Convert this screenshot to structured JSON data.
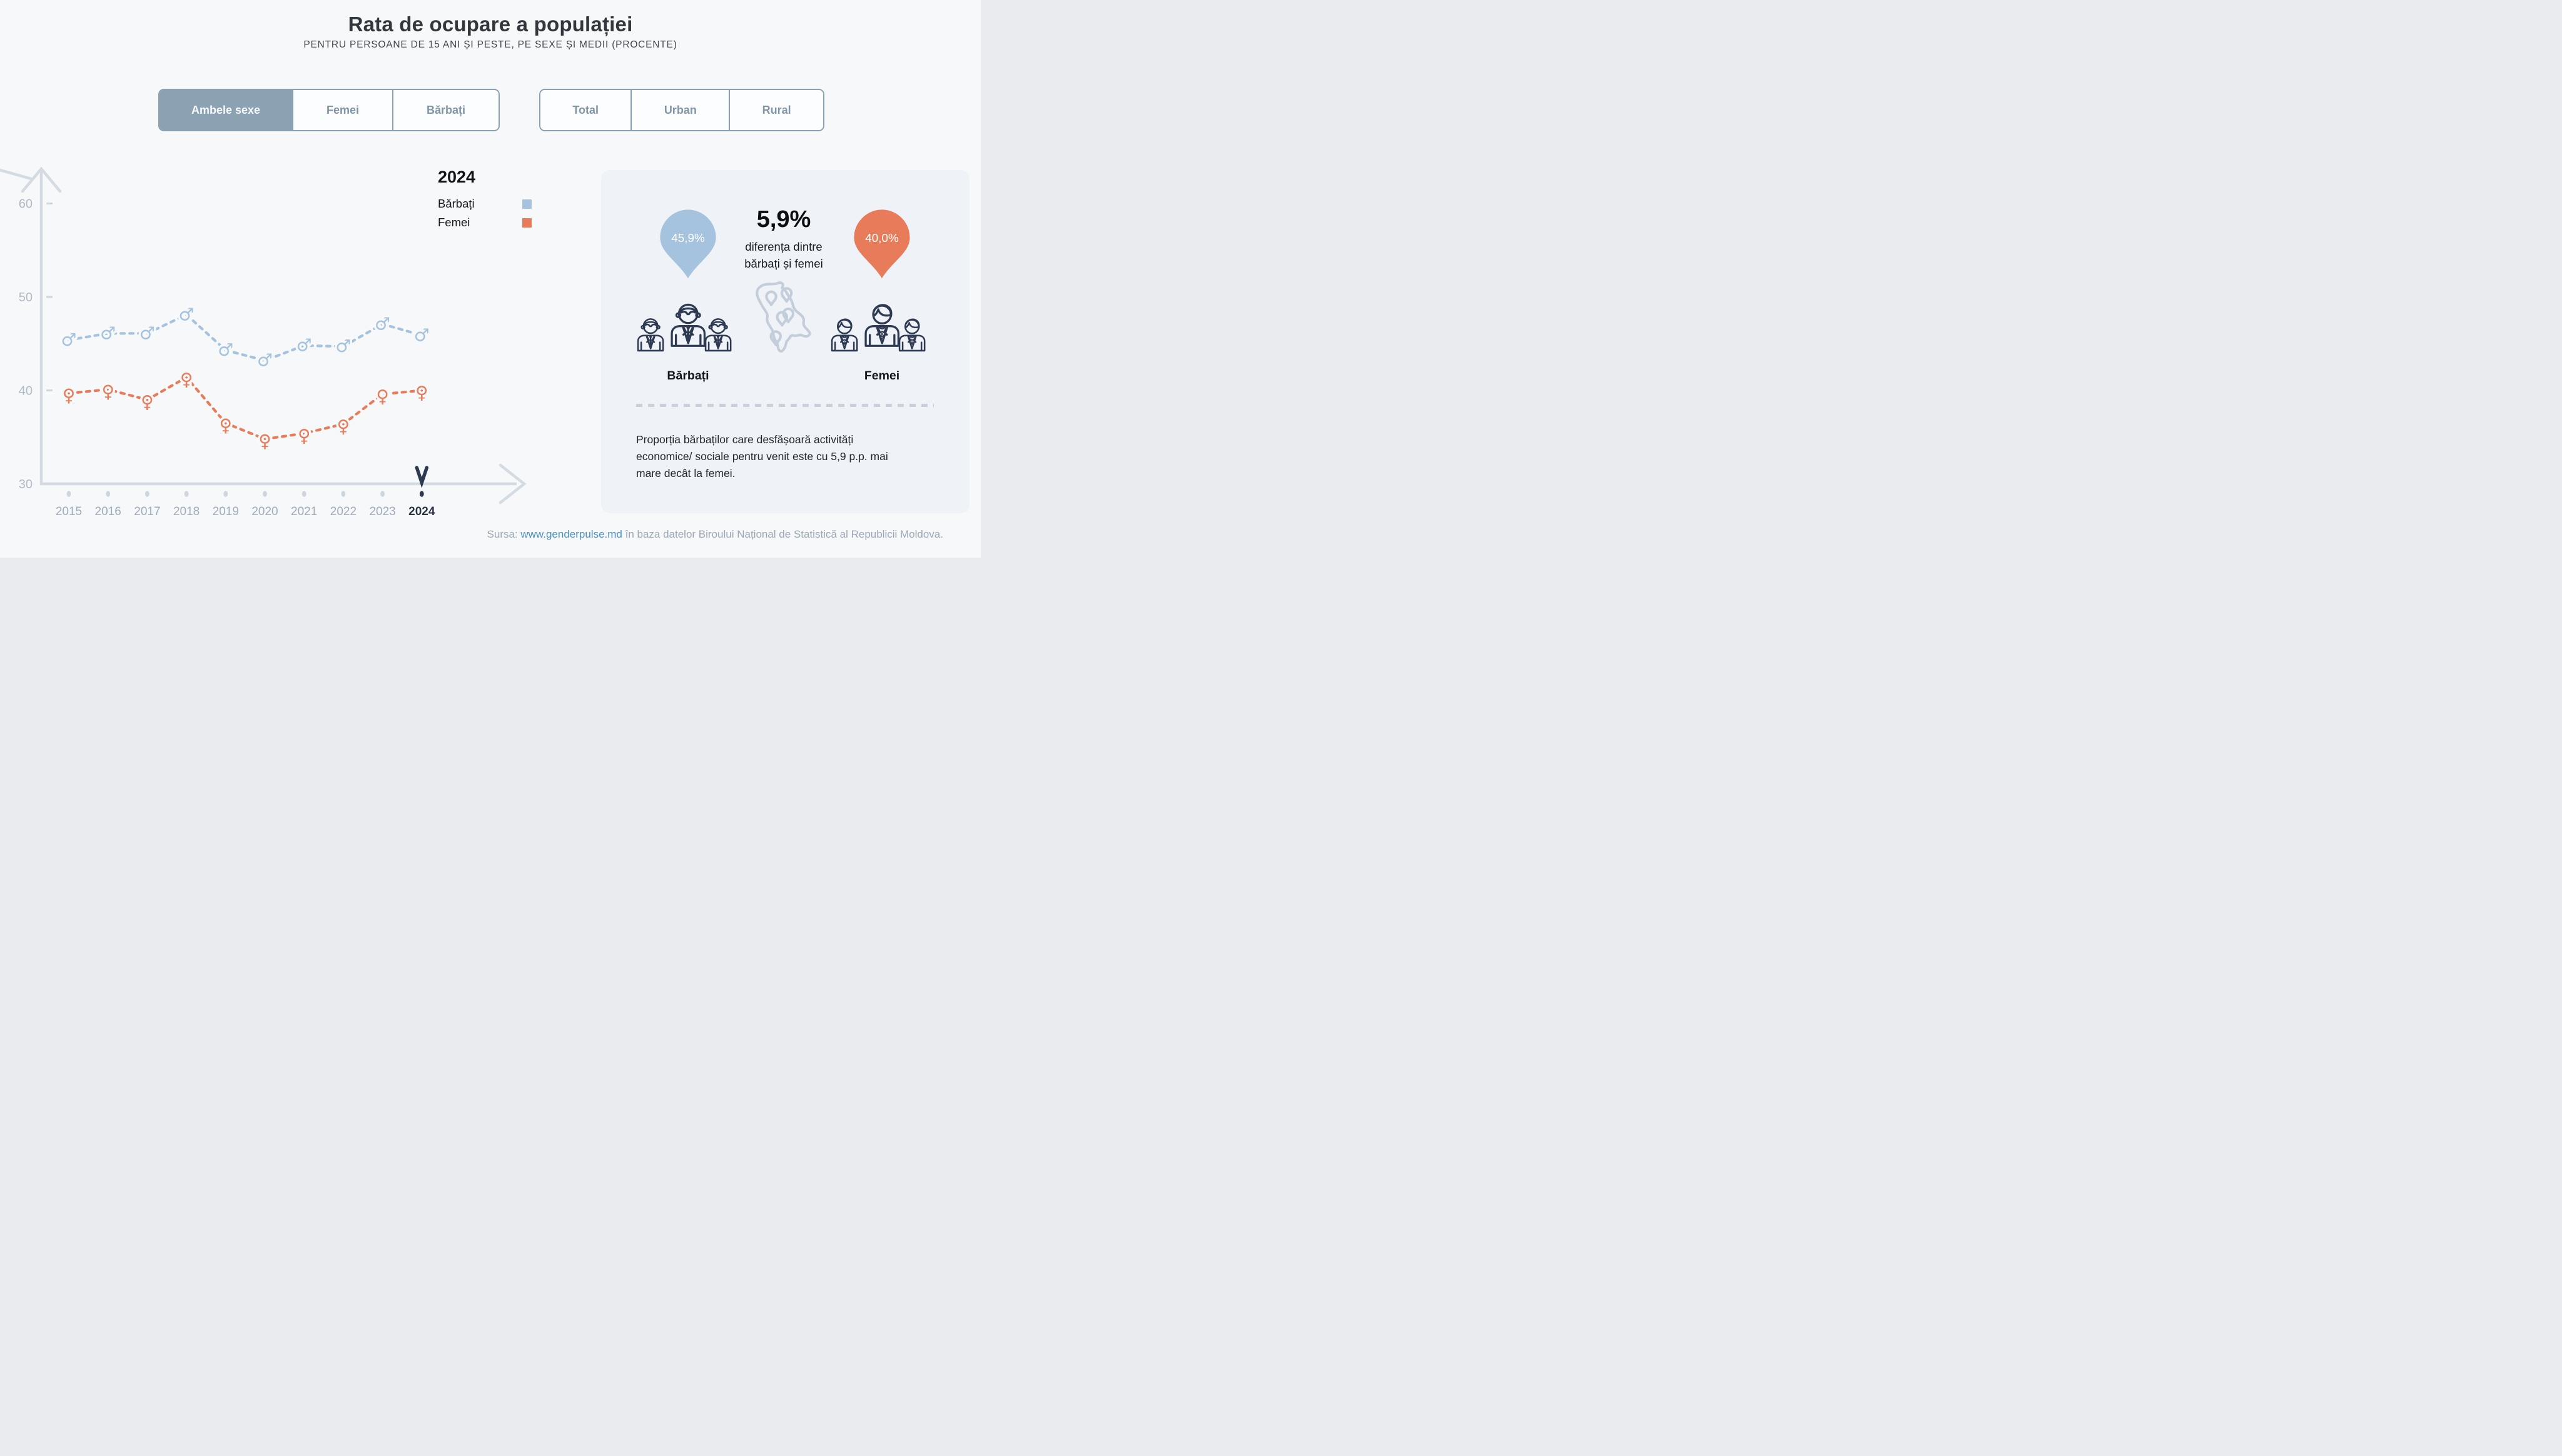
{
  "page": {
    "title": "Rata de ocupare a populației",
    "subtitle": "PENTRU PERSOANE DE 15 ANI ȘI PESTE, PE SEXE ȘI MEDII (PROCENTE)"
  },
  "filters": {
    "sex": {
      "options": [
        {
          "label": "Ambele sexe",
          "selected": true
        },
        {
          "label": "Femei",
          "selected": false
        },
        {
          "label": "Bărbați",
          "selected": false
        }
      ]
    },
    "area": {
      "options": [
        {
          "label": "Total",
          "selected": false
        },
        {
          "label": "Urban",
          "selected": false
        },
        {
          "label": "Rural",
          "selected": false
        }
      ]
    }
  },
  "chart_data": {
    "type": "line",
    "x": [
      2015,
      2016,
      2017,
      2018,
      2019,
      2020,
      2021,
      2022,
      2023,
      2024
    ],
    "series": [
      {
        "name": "Bărbați",
        "marker": "♂",
        "color": "#a5c2df",
        "values": [
          45.4,
          46.1,
          46.1,
          48.1,
          44.3,
          43.2,
          44.8,
          44.7,
          47.1,
          45.9
        ]
      },
      {
        "name": "Femei",
        "marker": "♀",
        "color": "#e87b5a",
        "values": [
          39.7,
          40.1,
          39.0,
          41.4,
          36.5,
          34.8,
          35.4,
          36.4,
          39.6,
          40.0
        ]
      }
    ],
    "title": "Rata de ocupare a populației",
    "xlabel": "",
    "ylabel": "",
    "ylim": [
      30,
      62
    ],
    "yticks": [
      30,
      40,
      50,
      60
    ],
    "grid": false,
    "legend_position": "top-right",
    "legend_title": "2024",
    "selected_year": "2024",
    "line_style": "dashed"
  },
  "panel": {
    "male_badge": "45,9%",
    "female_badge": "40,0%",
    "diff_value": "5,9%",
    "diff_caption_line1": "diferența dintre",
    "diff_caption_line2": "bărbați și femei",
    "male_label": "Bărbați",
    "female_label": "Femei",
    "description": "Proporția bărbaților care desfășoară activități economice/ sociale pentru venit este cu 5,9 p.p. mai mare decât la femei."
  },
  "footer": {
    "prefix": "Sursa: ",
    "link": "www.genderpulse.md",
    "suffix": " în baza datelor Biroului Național de Statistică al Republicii Moldova."
  },
  "colors": {
    "male": "#a5c2df",
    "female": "#e87b5a",
    "navy": "#2e3a52",
    "axis": "#d4dbe2",
    "panel_bg": "#eff2f6",
    "selected_toggle_bg": "#8ca1b2",
    "map_outline": "#c4cdda"
  },
  "icons": {
    "male_marker": "male-sign-icon",
    "female_marker": "female-sign-icon",
    "male_pin": "map-pin-icon",
    "female_pin": "map-pin-icon",
    "map": "moldova-map-icon",
    "men_group": "men-group-icon",
    "women_group": "women-group-icon",
    "year_pointer": "chevron-down-icon"
  }
}
